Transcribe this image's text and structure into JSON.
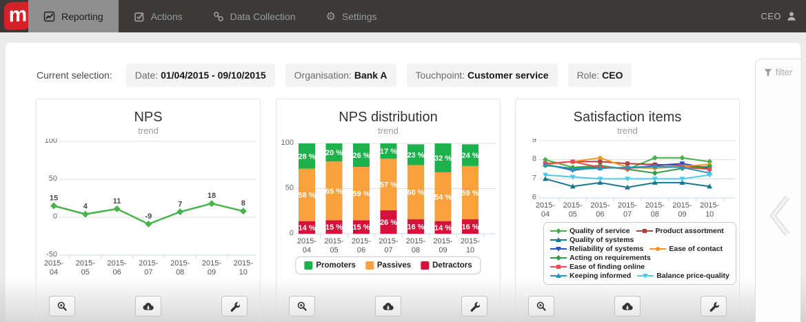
{
  "nav": {
    "logo_text": "m",
    "items": [
      {
        "label": "Reporting",
        "icon": "chart-line",
        "active": true
      },
      {
        "label": "Actions",
        "icon": "check-square",
        "active": false
      },
      {
        "label": "Data Collection",
        "icon": "chain-link",
        "active": false
      },
      {
        "label": "Settings",
        "icon": "gear",
        "active": false
      }
    ],
    "user_role": "CEO",
    "user_icon": "person"
  },
  "selection": {
    "label": "Current selection:",
    "chips": [
      {
        "label": "Date:",
        "value": "01/04/2015 - 09/10/2015"
      },
      {
        "label": "Organisation:",
        "value": "Bank A"
      },
      {
        "label": "Touchpoint:",
        "value": "Customer service"
      },
      {
        "label": "Role:",
        "value": "CEO"
      }
    ]
  },
  "side_panel": {
    "filter_label": "filter",
    "filter_icon": "funnel",
    "collapse_icon": "chevron-left"
  },
  "card_tools": [
    "zoom-in",
    "cloud-download",
    "wrench"
  ],
  "colors": {
    "brand_red": "#d62027",
    "nav_bg": "#3b3a39",
    "active_tab_bg": "#8f8f8f",
    "promoters_green": "#1db14c",
    "passives_orange": "#f9a13c",
    "detractors_red": "#d5133a",
    "nps_line_green": "#46b44a"
  },
  "chart_data": [
    {
      "type": "line",
      "title": "NPS",
      "subtitle": "trend",
      "categories": [
        "2015-04",
        "2015-05",
        "2015-06",
        "2015-07",
        "2015-08",
        "2015-09",
        "2015-10"
      ],
      "ylim": [
        -50,
        100
      ],
      "yticks": [
        100,
        50,
        0,
        -50
      ],
      "grid": true,
      "legend_position": "none",
      "data_labels": true,
      "series": [
        {
          "name": "NPS",
          "color": "#46b44a",
          "marker": "diamond",
          "values": [
            15,
            4,
            11,
            -9,
            7,
            18,
            8
          ]
        }
      ]
    },
    {
      "type": "bar",
      "stacked": true,
      "title": "NPS distribution",
      "subtitle": "trend",
      "categories": [
        "2015-04",
        "2015-05",
        "2015-06",
        "2015-07",
        "2015-08",
        "2015-09",
        "2015-10"
      ],
      "ylim": [
        0,
        100
      ],
      "yticks": [
        100,
        50,
        0
      ],
      "grid": true,
      "legend_position": "bottom",
      "data_labels": true,
      "label_suffix": " %",
      "series": [
        {
          "name": "Promoters",
          "color": "#1db14c",
          "values": [
            28,
            20,
            26,
            17,
            23,
            32,
            24
          ]
        },
        {
          "name": "Passives",
          "color": "#f9a13c",
          "values": [
            58,
            65,
            59,
            57,
            60,
            54,
            59
          ]
        },
        {
          "name": "Detractors",
          "color": "#d5133a",
          "values": [
            14,
            15,
            15,
            26,
            16,
            14,
            16
          ]
        }
      ]
    },
    {
      "type": "line",
      "title": "Satisfaction items",
      "subtitle": "trend",
      "categories": [
        "2015-04",
        "2015-05",
        "2015-06",
        "2015-07",
        "2015-08",
        "2015-09",
        "2015-10"
      ],
      "ylim": [
        6,
        9
      ],
      "yticks": [
        9,
        8,
        7,
        6
      ],
      "grid": true,
      "legend_position": "bottom",
      "data_labels": false,
      "series": [
        {
          "name": "Quality of service",
          "color": "#45b049",
          "marker": "diamond",
          "values": [
            8.0,
            7.6,
            7.7,
            7.5,
            8.1,
            8.1,
            7.9
          ]
        },
        {
          "name": "Product assortment",
          "color": "#b23f3a",
          "marker": "square",
          "values": [
            7.8,
            7.9,
            7.9,
            7.8,
            7.75,
            7.7,
            7.55
          ]
        },
        {
          "name": "Quality of systems",
          "color": "#17768f",
          "marker": "triangle",
          "values": [
            7.0,
            6.6,
            6.8,
            6.55,
            6.8,
            6.8,
            6.6
          ]
        },
        {
          "name": "Reliability of systems",
          "color": "#2a4fc0",
          "marker": "triangle-down",
          "values": [
            7.75,
            7.45,
            7.6,
            7.55,
            7.7,
            7.8,
            7.55
          ]
        },
        {
          "name": "Ease of contact",
          "color": "#f59321",
          "marker": "circle",
          "values": [
            7.75,
            7.9,
            8.1,
            7.6,
            7.55,
            7.65,
            7.75
          ]
        },
        {
          "name": "Acting on requirements",
          "color": "#2f9e44",
          "marker": "diamond",
          "values": [
            7.7,
            7.55,
            7.65,
            7.5,
            7.3,
            7.55,
            7.65
          ]
        },
        {
          "name": "Ease of finding online",
          "color": "#ec4b56",
          "marker": "square",
          "values": [
            7.8,
            7.9,
            7.6,
            7.55,
            7.65,
            7.6,
            7.5
          ]
        },
        {
          "name": "Keeping informed",
          "color": "#2596be",
          "marker": "triangle",
          "values": [
            7.75,
            7.5,
            7.55,
            7.6,
            7.65,
            7.6,
            7.3
          ]
        },
        {
          "name": "Balance price-quality",
          "color": "#4ec9e8",
          "marker": "triangle-down",
          "values": [
            7.2,
            7.1,
            7.0,
            7.0,
            7.0,
            7.0,
            7.2
          ]
        }
      ]
    }
  ]
}
